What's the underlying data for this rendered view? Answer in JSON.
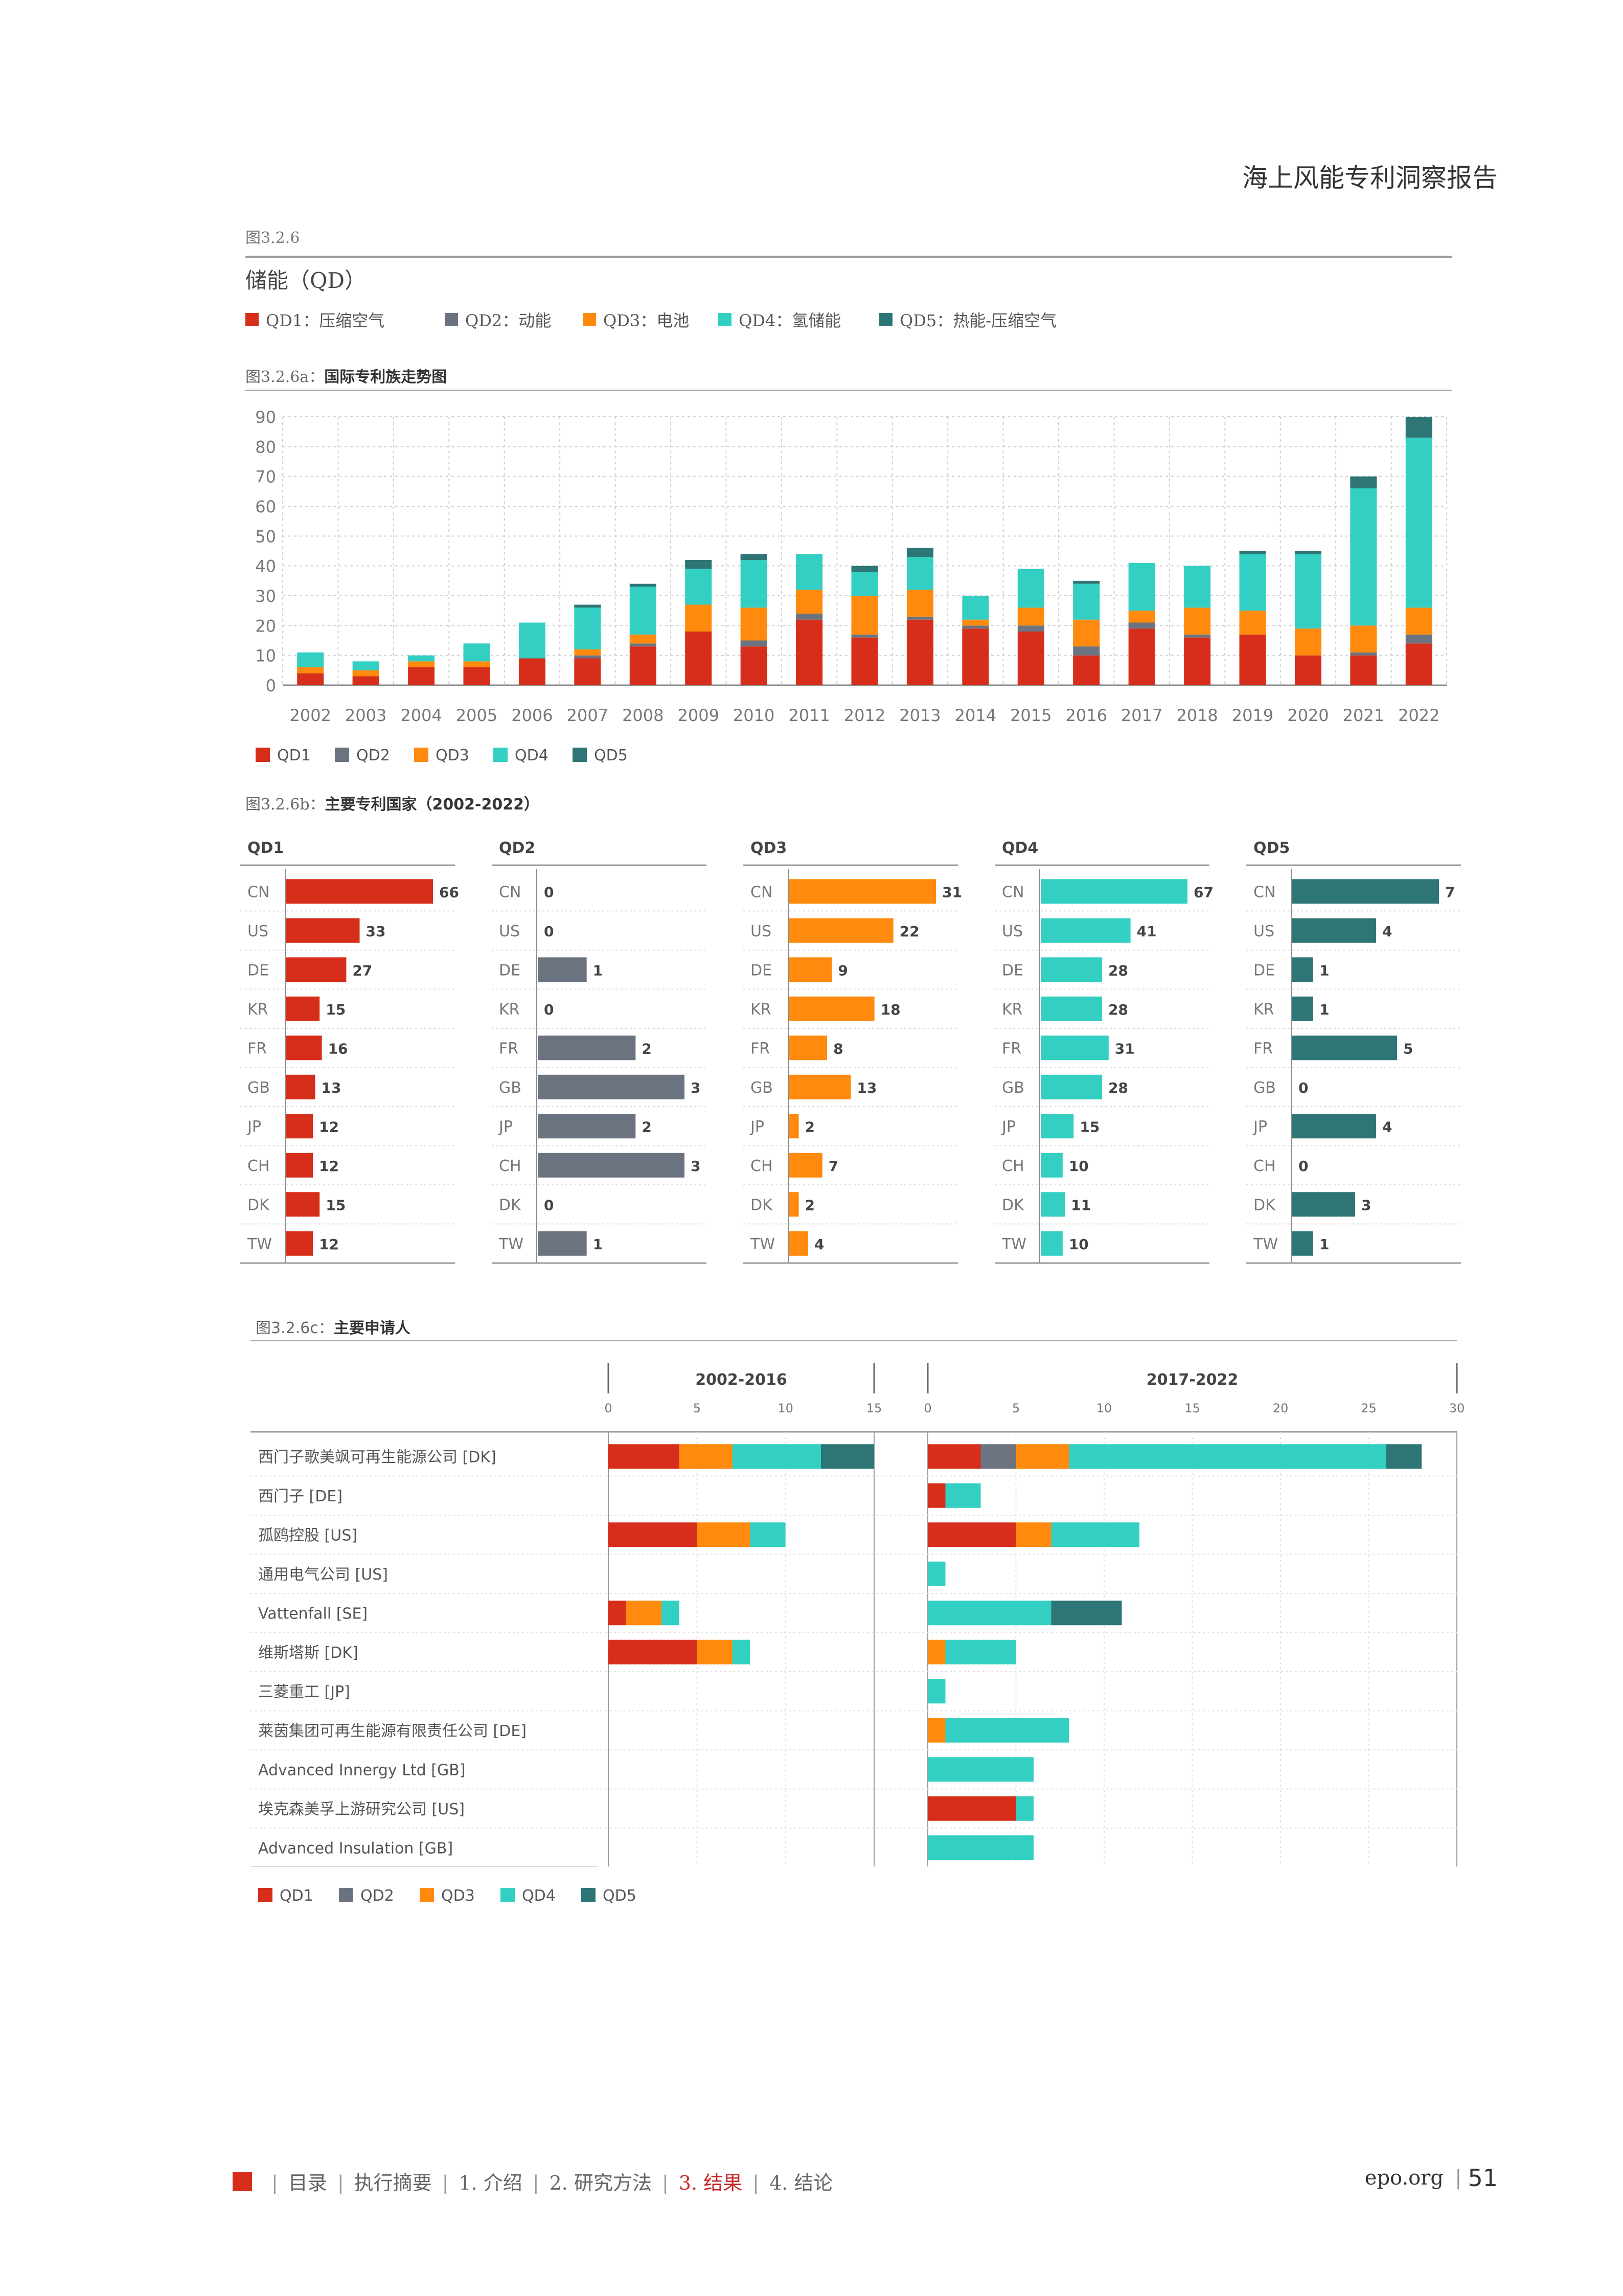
{
  "header": {
    "title": "海上风能专利洞察报告"
  },
  "figure": {
    "label": "图3.2.6",
    "title": "储能（QD）"
  },
  "colors": {
    "QD1": "#d62e1a",
    "QD2": "#6c7380",
    "QD3": "#ff8a0d",
    "QD4": "#33cfc3",
    "QD5": "#2e7676"
  },
  "top_legend": [
    {
      "key": "QD1",
      "label": "QD1：压缩空气"
    },
    {
      "key": "QD2",
      "label": "QD2：动能"
    },
    {
      "key": "QD3",
      "label": "QD3：电池"
    },
    {
      "key": "QD4",
      "label": "QD4：氢储能"
    },
    {
      "key": "QD5",
      "label": "QD5：热能-压缩空气"
    }
  ],
  "chart_data": [
    {
      "type": "bar",
      "stacked": true,
      "prefix": "图3.2.6a：",
      "title": "国际专利族走势图",
      "categories": [
        "2002",
        "2003",
        "2004",
        "2005",
        "2006",
        "2007",
        "2008",
        "2009",
        "2010",
        "2011",
        "2012",
        "2013",
        "2014",
        "2015",
        "2016",
        "2017",
        "2018",
        "2019",
        "2020",
        "2021",
        "2022"
      ],
      "ylim": [
        0,
        90
      ],
      "yticks": [
        0,
        10,
        20,
        30,
        40,
        50,
        60,
        70,
        80,
        90
      ],
      "legend_position": "bottom-left",
      "legend": [
        "QD1",
        "QD2",
        "QD3",
        "QD4",
        "QD5"
      ],
      "series": [
        {
          "name": "QD1",
          "values": [
            4,
            3,
            6,
            6,
            9,
            9,
            13,
            18,
            13,
            22,
            16,
            22,
            19,
            18,
            10,
            19,
            16,
            17,
            10,
            10,
            14
          ]
        },
        {
          "name": "QD2",
          "values": [
            0,
            0,
            0,
            0,
            0,
            1,
            1,
            0,
            2,
            2,
            1,
            1,
            1,
            2,
            3,
            2,
            1,
            0,
            0,
            1,
            3
          ]
        },
        {
          "name": "QD3",
          "values": [
            2,
            2,
            2,
            2,
            0,
            2,
            3,
            9,
            11,
            8,
            13,
            9,
            2,
            6,
            9,
            4,
            9,
            8,
            9,
            9,
            9
          ]
        },
        {
          "name": "QD4",
          "values": [
            5,
            3,
            2,
            6,
            12,
            14,
            16,
            12,
            16,
            12,
            8,
            11,
            8,
            13,
            12,
            16,
            14,
            19,
            25,
            46,
            57
          ]
        },
        {
          "name": "QD5",
          "values": [
            0,
            0,
            0,
            0,
            0,
            1,
            1,
            3,
            2,
            0,
            2,
            3,
            0,
            0,
            1,
            0,
            0,
            1,
            1,
            4,
            7
          ]
        }
      ]
    },
    {
      "type": "bar",
      "orientation": "horizontal",
      "prefix": "图3.2.6b：",
      "title": "主要专利国家（2002-2022）",
      "countries": [
        "CN",
        "US",
        "DE",
        "KR",
        "FR",
        "GB",
        "JP",
        "CH",
        "DK",
        "TW"
      ],
      "panels": [
        {
          "name": "QD1",
          "values": [
            66,
            33,
            27,
            15,
            16,
            13,
            12,
            12,
            15,
            12
          ]
        },
        {
          "name": "QD2",
          "values": [
            0,
            0,
            1,
            0,
            2,
            3,
            2,
            3,
            0,
            1
          ]
        },
        {
          "name": "QD3",
          "values": [
            31,
            22,
            9,
            18,
            8,
            13,
            2,
            7,
            2,
            4
          ]
        },
        {
          "name": "QD4",
          "values": [
            67,
            41,
            28,
            28,
            31,
            28,
            15,
            10,
            11,
            10
          ]
        },
        {
          "name": "QD5",
          "values": [
            7,
            4,
            1,
            1,
            5,
            0,
            4,
            0,
            3,
            1
          ]
        }
      ]
    },
    {
      "type": "bar",
      "orientation": "horizontal",
      "stacked": true,
      "prefix": "图3.2.6c：",
      "title": "主要申请人",
      "applicants": [
        "西门子歌美飒可再生能源公司 [DK]",
        "西门子 [DE]",
        "孤鸥控股 [US]",
        "通用电气公司 [US]",
        "Vattenfall [SE]",
        "维斯塔斯 [DK]",
        "三菱重工 [JP]",
        "莱茵集团可再生能源有限责任公司 [DE]",
        "Advanced Innergy Ltd [GB]",
        "埃克森美孚上游研究公司 [US]",
        "Advanced Insulation [GB]"
      ],
      "periods": [
        {
          "label": "2002-2016",
          "xlim": [
            0,
            15
          ],
          "xticks": [
            0,
            5,
            10,
            15
          ],
          "series": [
            {
              "name": "QD1",
              "values": [
                4,
                0,
                5,
                0,
                1,
                5,
                0,
                0,
                0,
                0,
                0
              ]
            },
            {
              "name": "QD2",
              "values": [
                0,
                0,
                0,
                0,
                0,
                0,
                0,
                0,
                0,
                0,
                0
              ]
            },
            {
              "name": "QD3",
              "values": [
                3,
                0,
                3,
                0,
                2,
                2,
                0,
                0,
                0,
                0,
                0
              ]
            },
            {
              "name": "QD4",
              "values": [
                5,
                0,
                2,
                0,
                1,
                1,
                0,
                0,
                0,
                0,
                0
              ]
            },
            {
              "name": "QD5",
              "values": [
                3,
                0,
                0,
                0,
                0,
                0,
                0,
                0,
                0,
                0,
                0
              ]
            }
          ]
        },
        {
          "label": "2017-2022",
          "xlim": [
            0,
            30
          ],
          "xticks": [
            0,
            5,
            10,
            15,
            20,
            25,
            30
          ],
          "series": [
            {
              "name": "QD1",
              "values": [
                3,
                1,
                5,
                0,
                0,
                0,
                0,
                0,
                0,
                5,
                0
              ]
            },
            {
              "name": "QD2",
              "values": [
                2,
                0,
                0,
                0,
                0,
                0,
                0,
                0,
                0,
                0,
                0
              ]
            },
            {
              "name": "QD3",
              "values": [
                3,
                0,
                2,
                0,
                0,
                1,
                0,
                1,
                0,
                0,
                0
              ]
            },
            {
              "name": "QD4",
              "values": [
                18,
                2,
                5,
                1,
                7,
                4,
                1,
                7,
                6,
                1,
                6
              ]
            },
            {
              "name": "QD5",
              "values": [
                2,
                0,
                0,
                0,
                4,
                0,
                0,
                0,
                0,
                0,
                0
              ]
            }
          ]
        }
      ],
      "legend": [
        "QD1",
        "QD2",
        "QD3",
        "QD4",
        "QD5"
      ]
    }
  ],
  "footer": {
    "nav": [
      {
        "label": "目录",
        "active": false
      },
      {
        "label": "执行摘要",
        "active": false
      },
      {
        "label": "1. 介绍",
        "active": false
      },
      {
        "label": "2. 研究方法",
        "active": false
      },
      {
        "label": "3. 结果",
        "active": true
      },
      {
        "label": "4. 结论",
        "active": false
      }
    ],
    "site": "epo.org",
    "page_number": "51"
  }
}
